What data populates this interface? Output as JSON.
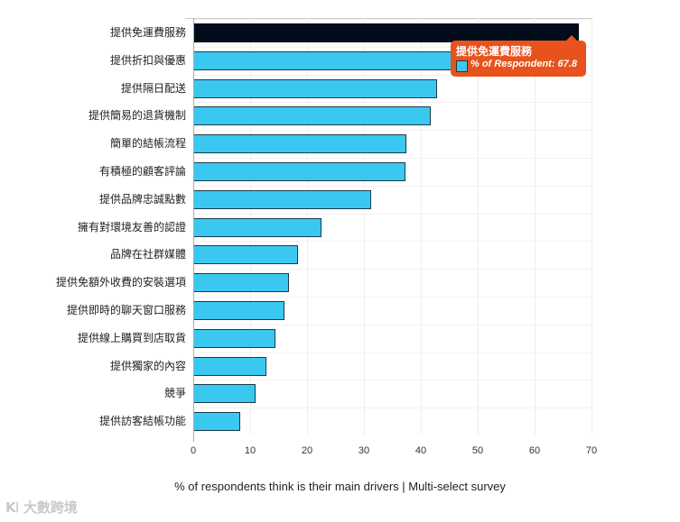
{
  "chart_data": {
    "type": "bar",
    "orientation": "horizontal",
    "title": "",
    "xlabel": "% of respondents think is their main drivers | Multi-select survey",
    "ylabel": "",
    "xlim": [
      0,
      70
    ],
    "x_ticks": [
      "0",
      "10",
      "20",
      "30",
      "40",
      "50",
      "60",
      "70"
    ],
    "grid": true,
    "series_name": "% of Respondent",
    "categories": [
      "提供免運費服務",
      "提供折扣與優惠",
      "提供隔日配送",
      "提供簡易的退貨機制",
      "簡單的結帳流程",
      "有積極的顧客評論",
      "提供品牌忠誠點數",
      "擁有對環境友善的認證",
      "品牌在社群媒體",
      "提供免額外收費的安裝選項",
      "提供即時的聊天窗口服務",
      "提供線上購買到店取貨",
      "提供獨家的內容",
      "競爭",
      "提供訪客結帳功能"
    ],
    "values": [
      67.8,
      52,
      42.9,
      41.7,
      37.4,
      37.3,
      31.3,
      22.5,
      18.4,
      16.8,
      16.0,
      14.4,
      12.9,
      11.0,
      8.3
    ],
    "highlighted_index": 0,
    "colors": {
      "bar": "#3ac8f0",
      "highlight": "#020d1c",
      "border": "#1b3a4a"
    }
  },
  "tooltip": {
    "title": "提供免運費服務",
    "value_text": "% of Respondent: 67.8",
    "color": "#e8521c"
  },
  "watermark": "K꘡ 大數跨境"
}
